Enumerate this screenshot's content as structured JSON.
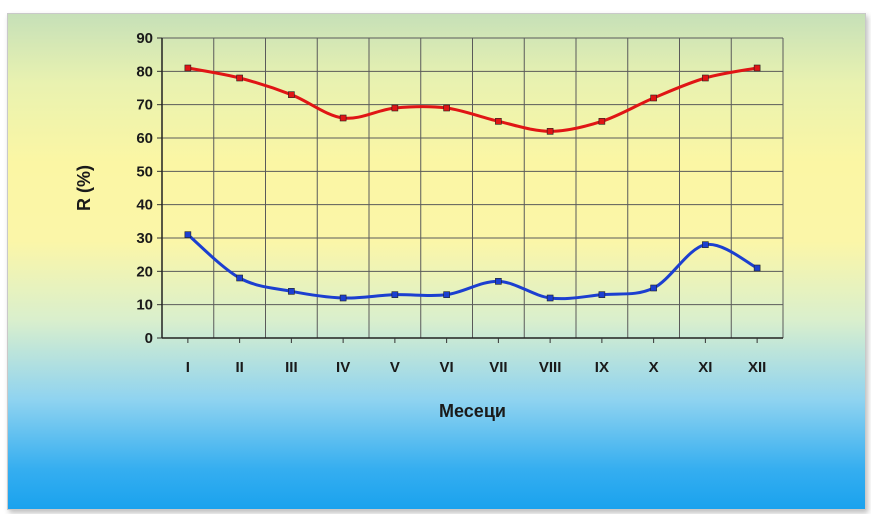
{
  "chart_data": {
    "type": "line",
    "title": "",
    "xlabel": "Месеци",
    "ylabel": "R  (%)",
    "categories": [
      "I",
      "II",
      "III",
      "IV",
      "V",
      "VI",
      "VII",
      "VIII",
      "IX",
      "X",
      "XI",
      "XII"
    ],
    "ylim": [
      0,
      90
    ],
    "yticks": [
      "0",
      "10",
      "20",
      "30",
      "40",
      "50",
      "60",
      "70",
      "80",
      "90"
    ],
    "grid": true,
    "legend": "none",
    "series": [
      {
        "color": "#e01515",
        "values": [
          81,
          78,
          73,
          66,
          69,
          69,
          65,
          62,
          65,
          72,
          78,
          81
        ]
      },
      {
        "color": "#1c3fd0",
        "values": [
          31,
          18,
          14,
          12,
          13,
          13,
          17,
          12,
          13,
          15,
          28,
          21
        ]
      }
    ]
  }
}
